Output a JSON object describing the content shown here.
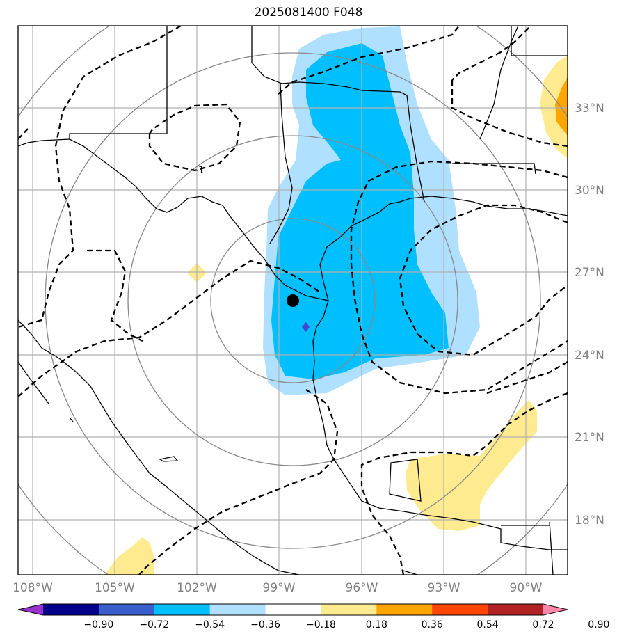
{
  "title": "2025081400 F048",
  "lat_labels": [
    "33°N",
    "30°N",
    "27°N",
    "24°N",
    "21°N",
    "18°N"
  ],
  "lon_labels": [
    "108°W",
    "105°W",
    "102°W",
    "99°W",
    "96°W",
    "93°W",
    "90°W"
  ],
  "contour_label": "-1",
  "colorbar": {
    "ticks": [
      "−0.90",
      "−0.72",
      "−0.54",
      "−0.36",
      "−0.18",
      "0.18",
      "0.36",
      "0.54",
      "0.72",
      "0.90"
    ],
    "colors": [
      "#9932cc",
      "#00008b",
      "#3a5fcd",
      "#00bfff",
      "#b0e0ff",
      "#ffffff",
      "#ffeb8f",
      "#ffa500",
      "#ff4500",
      "#b22222",
      "#ff88aa"
    ]
  },
  "colors": {
    "light_blue": "#b0e0ff",
    "blue": "#00bfff",
    "yellow": "#ffeb8f",
    "orange": "#ffa500",
    "purple": "#4444cc"
  },
  "center_marker": "storm-center"
}
